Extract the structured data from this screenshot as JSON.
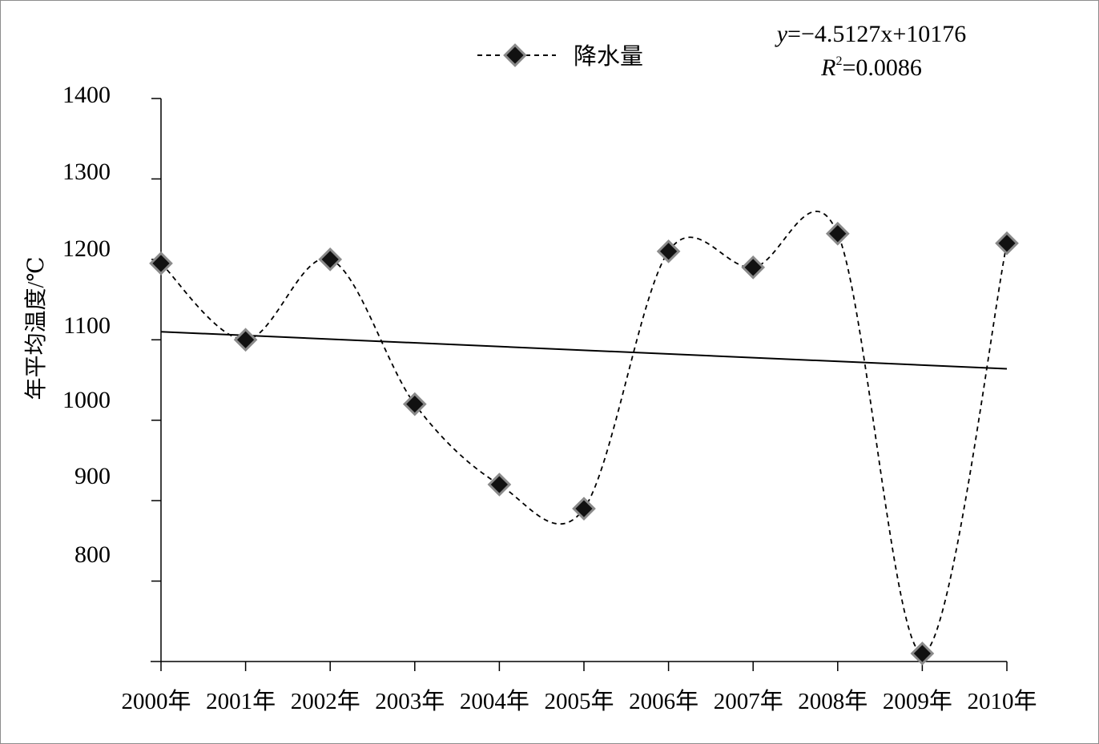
{
  "chart_data": {
    "type": "line",
    "title": "",
    "xlabel": "",
    "ylabel": "年平均温度/℃",
    "ylim": [
      700,
      1400
    ],
    "yticks": [
      1400,
      1300,
      1200,
      1100,
      1000,
      900,
      800
    ],
    "categories": [
      "2000年",
      "2001年",
      "2002年",
      "2003年",
      "2004年",
      "2005年",
      "2006年",
      "2007年",
      "2008年",
      "2009年",
      "2010年"
    ],
    "series": [
      {
        "name": "降水量",
        "values": [
          1195,
          1100,
          1200,
          1020,
          920,
          890,
          1210,
          1190,
          1232,
          710,
          1220
        ],
        "color": "#000000",
        "line_style": "dashed-smooth",
        "marker": "diamond"
      }
    ],
    "trendline": {
      "equation_prefix": "y",
      "equation_rest": "=−4.5127x+10176",
      "r2_prefix": "R",
      "r2_sup": "2",
      "r2_rest": "=0.0086",
      "start_value": 1110,
      "end_value": 1064,
      "color": "#000000"
    },
    "legend": {
      "position": "top-center"
    },
    "grid": false
  }
}
